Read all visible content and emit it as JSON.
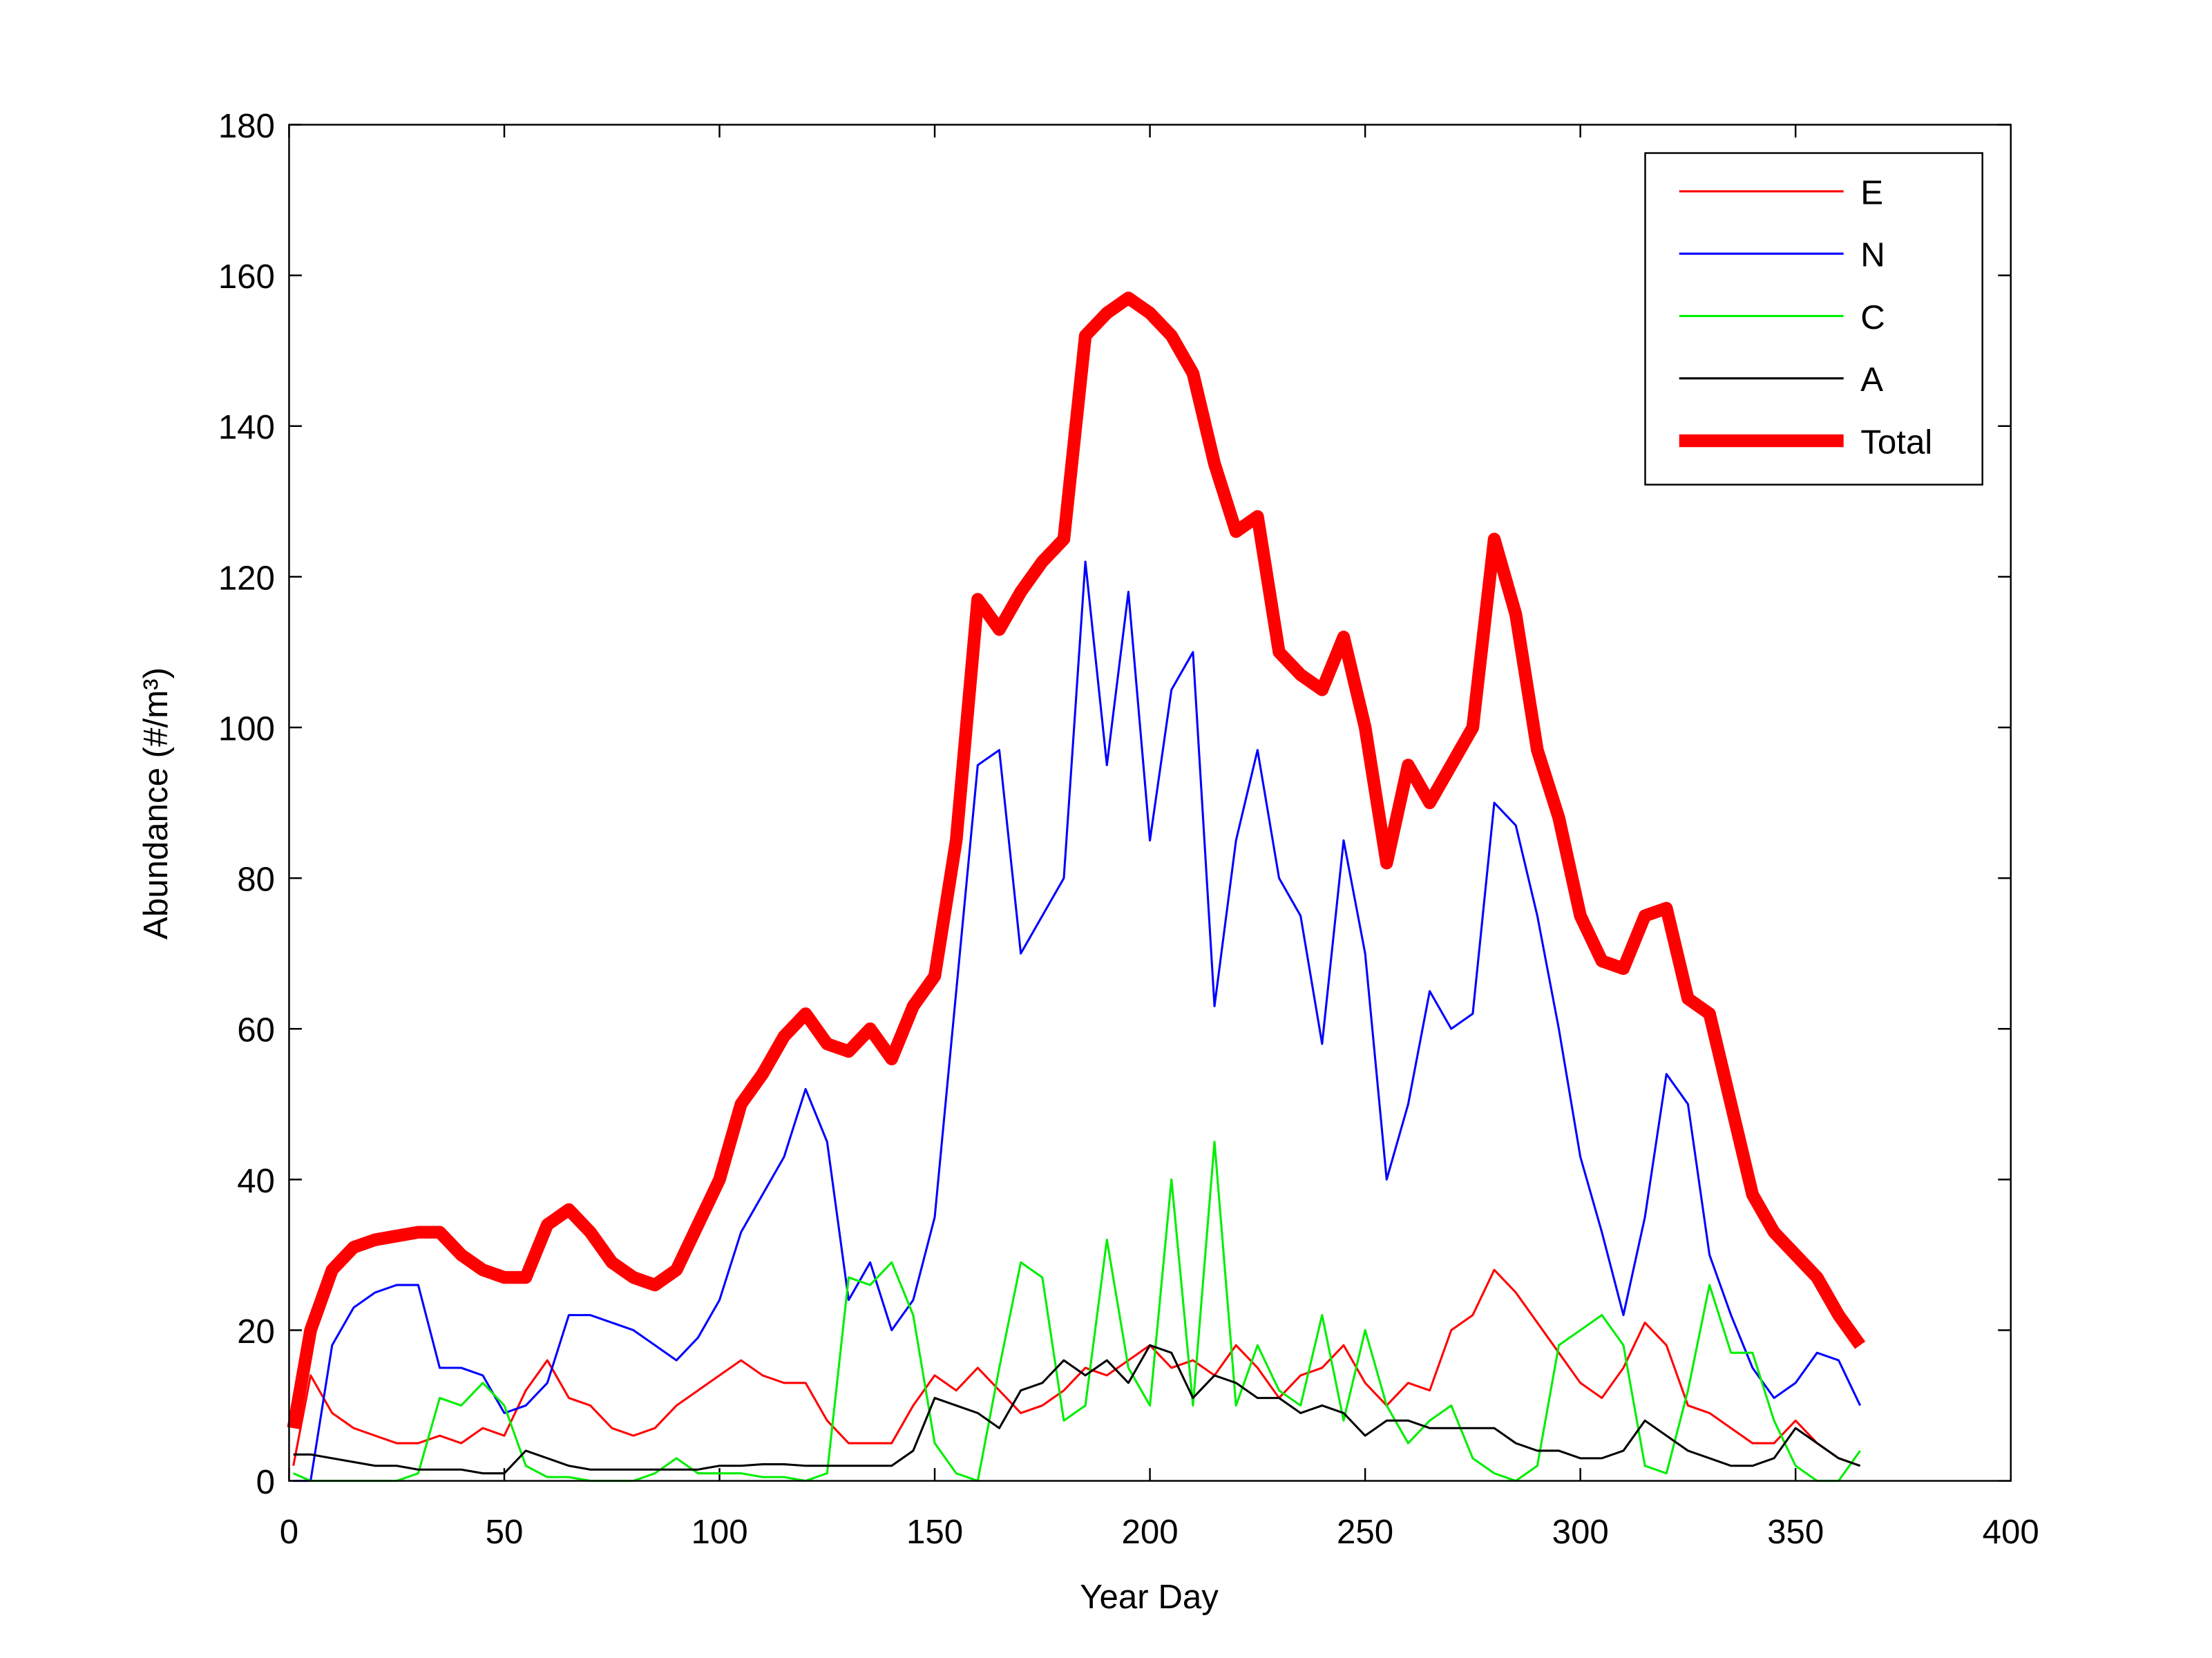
{
  "chart_data": {
    "type": "line",
    "xlabel": "Year Day",
    "ylabel": "Abundance (#/m³)",
    "xlim": [
      0,
      400
    ],
    "xticks": [
      0,
      50,
      100,
      150,
      200,
      250,
      300,
      350,
      400
    ],
    "ylim": [
      0,
      180
    ],
    "yticks": [
      0,
      20,
      40,
      60,
      80,
      100,
      120,
      140,
      160,
      180
    ],
    "legend": "upper right",
    "grid": false,
    "x": [
      1,
      5,
      10,
      15,
      20,
      25,
      30,
      35,
      40,
      45,
      50,
      55,
      60,
      65,
      70,
      75,
      80,
      85,
      90,
      95,
      100,
      105,
      110,
      115,
      120,
      125,
      130,
      135,
      140,
      145,
      150,
      155,
      160,
      165,
      170,
      175,
      180,
      185,
      190,
      195,
      200,
      205,
      210,
      215,
      220,
      225,
      230,
      235,
      240,
      245,
      250,
      255,
      260,
      265,
      270,
      275,
      280,
      285,
      290,
      295,
      300,
      305,
      310,
      315,
      320,
      325,
      330,
      335,
      340,
      345,
      350,
      355,
      360,
      365
    ],
    "series": [
      {
        "name": "E",
        "color": "#ff0000",
        "width": 1.5,
        "values": [
          2,
          14,
          9,
          7,
          6,
          5,
          5,
          6,
          5,
          7,
          6,
          12,
          16,
          11,
          10,
          7,
          6,
          7,
          10,
          12,
          14,
          16,
          14,
          13,
          13,
          8,
          5,
          5,
          5,
          10,
          14,
          12,
          15,
          12,
          9,
          10,
          12,
          15,
          14,
          16,
          18,
          15,
          16,
          14,
          18,
          15,
          11,
          14,
          15,
          18,
          13,
          10,
          13,
          12,
          20,
          22,
          28,
          25,
          21,
          17,
          13,
          11,
          15,
          21,
          18,
          10,
          9,
          7,
          5,
          5,
          8,
          5,
          3,
          2
        ]
      },
      {
        "name": "N",
        "color": "#0000ff",
        "width": 1.5,
        "values": [
          0,
          0,
          18,
          23,
          25,
          26,
          26,
          15,
          15,
          14,
          9,
          10,
          13,
          22,
          22,
          21,
          20,
          18,
          16,
          19,
          24,
          33,
          38,
          43,
          52,
          45,
          24,
          29,
          20,
          24,
          35,
          65,
          95,
          97,
          70,
          75,
          80,
          122,
          95,
          118,
          85,
          105,
          110,
          63,
          85,
          97,
          80,
          75,
          58,
          85,
          70,
          40,
          50,
          65,
          60,
          62,
          90,
          87,
          75,
          60,
          43,
          33,
          22,
          35,
          54,
          50,
          30,
          22,
          15,
          11,
          13,
          17,
          16,
          10
        ]
      },
      {
        "name": "C",
        "color": "#00ee00",
        "width": 1.5,
        "values": [
          1,
          0,
          0,
          0,
          0,
          0,
          1,
          11,
          10,
          13,
          10,
          2,
          0.5,
          0.5,
          0,
          0,
          0,
          1,
          3,
          1,
          1,
          1,
          0.5,
          0.5,
          0,
          1,
          27,
          26,
          29,
          22,
          5,
          1,
          0,
          15,
          29,
          27,
          8,
          10,
          32,
          15,
          10,
          40,
          10,
          45,
          10,
          18,
          12,
          10,
          22,
          8,
          20,
          10,
          5,
          8,
          10,
          3,
          1,
          0,
          2,
          18,
          20,
          22,
          18,
          2,
          1,
          12,
          26,
          17,
          17,
          8,
          2,
          0,
          0,
          4
        ]
      },
      {
        "name": "A",
        "color": "#000000",
        "width": 1.5,
        "values": [
          3.5,
          3.5,
          3,
          2.5,
          2,
          2,
          1.5,
          1.5,
          1.5,
          1,
          1,
          4,
          3,
          2,
          1.5,
          1.5,
          1.5,
          1.5,
          1.5,
          1.5,
          2,
          2,
          2.2,
          2.2,
          2,
          2,
          2,
          2,
          2,
          4,
          11,
          10,
          9,
          7,
          12,
          13,
          16,
          14,
          16,
          13,
          18,
          17,
          11,
          14,
          13,
          11,
          11,
          9,
          10,
          9,
          6,
          8,
          8,
          7,
          7,
          7,
          7,
          5,
          4,
          4,
          3,
          3,
          4,
          8,
          6,
          4,
          3,
          2,
          2,
          3,
          7,
          5,
          3,
          2
        ]
      },
      {
        "name": "Total",
        "color": "#ff0000",
        "width": 9,
        "values": [
          7,
          20,
          28,
          31,
          32,
          32.5,
          33,
          33,
          30,
          28,
          27,
          27,
          34,
          36,
          33,
          29,
          27,
          26,
          28,
          34,
          40,
          50,
          54,
          59,
          62,
          58,
          57,
          60,
          56,
          63,
          67,
          85,
          117,
          113,
          118,
          122,
          125,
          152,
          155,
          157,
          155,
          152,
          147,
          135,
          126,
          128,
          110,
          107,
          105,
          112,
          100,
          82,
          95,
          90,
          95,
          100,
          125,
          115,
          97,
          88,
          75,
          69,
          68,
          75,
          76,
          64,
          62,
          50,
          38,
          33,
          30,
          27,
          22,
          18
        ]
      }
    ]
  }
}
